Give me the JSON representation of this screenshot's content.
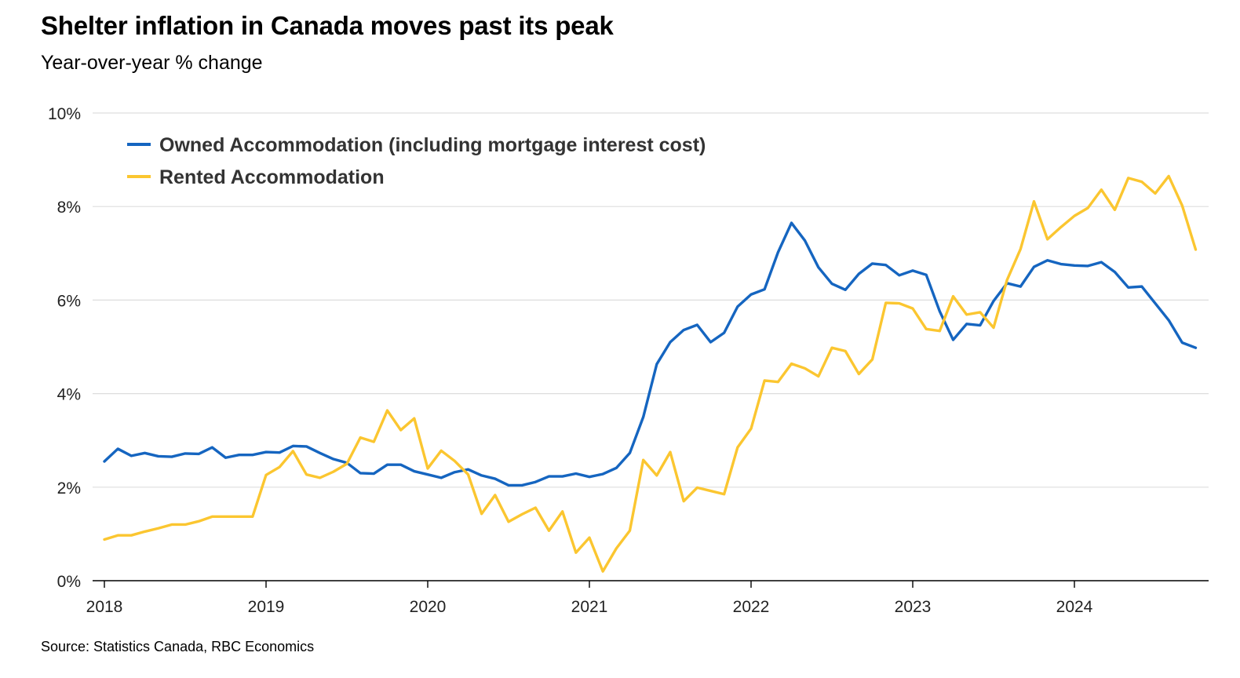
{
  "title": "Shelter inflation in Canada moves past its peak",
  "subtitle": "Year-over-year % change",
  "source": "Source: Statistics Canada, RBC Economics",
  "chart_data": {
    "type": "line",
    "title": "Shelter inflation in Canada moves past its peak",
    "subtitle": "Year-over-year % change",
    "xlabel": "",
    "ylabel": "",
    "x_start": "2018-01",
    "x_frequency": "monthly",
    "x_ticks": [
      "2018",
      "2019",
      "2020",
      "2021",
      "2022",
      "2023",
      "2024"
    ],
    "ylim": [
      0,
      10
    ],
    "y_ticks": [
      "0%",
      "2%",
      "4%",
      "6%",
      "8%",
      "10%"
    ],
    "grid": "horizontal",
    "legend_position": "top-left",
    "series": [
      {
        "name": "Owned Accommodation (including mortgage interest cost)",
        "color": "#1565C0",
        "values": [
          2.55,
          2.82,
          2.67,
          2.73,
          2.66,
          2.65,
          2.72,
          2.71,
          2.85,
          2.63,
          2.69,
          2.69,
          2.75,
          2.74,
          2.88,
          2.87,
          2.73,
          2.6,
          2.52,
          2.3,
          2.29,
          2.48,
          2.48,
          2.34,
          2.27,
          2.2,
          2.32,
          2.38,
          2.25,
          2.18,
          2.04,
          2.04,
          2.11,
          2.23,
          2.23,
          2.29,
          2.22,
          2.28,
          2.41,
          2.73,
          3.5,
          4.63,
          5.1,
          5.36,
          5.47,
          5.1,
          5.3,
          5.86,
          6.12,
          6.23,
          7.02,
          7.65,
          7.27,
          6.7,
          6.35,
          6.22,
          6.56,
          6.78,
          6.75,
          6.53,
          6.63,
          6.54,
          5.76,
          5.15,
          5.49,
          5.46,
          5.98,
          6.36,
          6.29,
          6.71,
          6.85,
          6.77,
          6.74,
          6.73,
          6.81,
          6.6,
          6.27,
          6.29,
          5.93,
          5.57,
          5.09,
          4.98
        ]
      },
      {
        "name": "Rented Accommodation",
        "color": "#FBC630",
        "values": [
          0.88,
          0.97,
          0.97,
          1.05,
          1.12,
          1.2,
          1.2,
          1.27,
          1.37,
          1.37,
          1.37,
          1.37,
          2.26,
          2.43,
          2.77,
          2.27,
          2.2,
          2.33,
          2.5,
          3.06,
          2.97,
          3.64,
          3.22,
          3.47,
          2.4,
          2.78,
          2.56,
          2.27,
          1.43,
          1.83,
          1.26,
          1.42,
          1.56,
          1.07,
          1.48,
          0.6,
          0.92,
          0.2,
          0.69,
          1.07,
          2.58,
          2.25,
          2.75,
          1.7,
          1.99,
          1.92,
          1.85,
          2.85,
          3.25,
          4.28,
          4.25,
          4.64,
          4.54,
          4.37,
          4.98,
          4.91,
          4.42,
          4.73,
          5.94,
          5.93,
          5.82,
          5.38,
          5.34,
          6.08,
          5.69,
          5.74,
          5.41,
          6.43,
          7.09,
          8.11,
          7.3,
          7.56,
          7.8,
          7.97,
          8.36,
          7.93,
          8.61,
          8.53,
          8.28,
          8.65,
          8.02,
          7.08
        ]
      }
    ]
  }
}
